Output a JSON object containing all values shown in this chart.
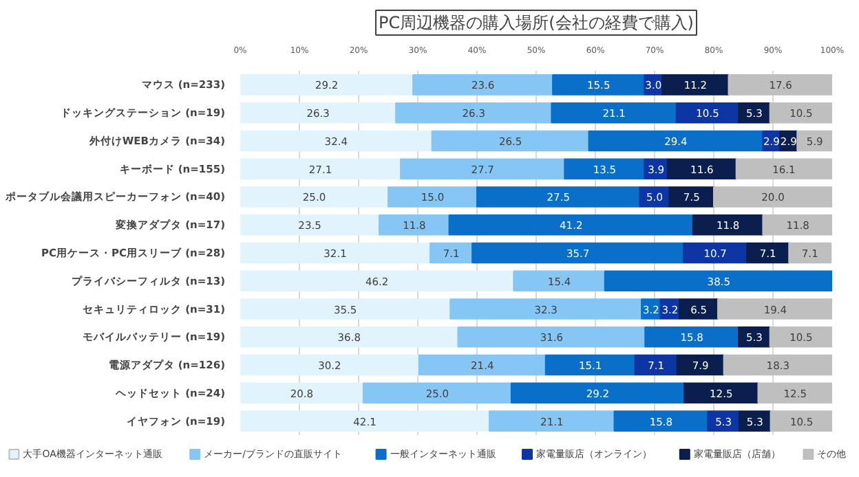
{
  "chart_data": {
    "type": "bar",
    "orientation": "horizontal",
    "stacked": true,
    "data_labels": true,
    "title": "PC周辺機器の購入場所(会社の経費で購入)",
    "categories": [
      "マウス (n=233)",
      "ドッキングステーション (n=19)",
      "外付けWEBカメラ (n=34)",
      "キーボード (n=155)",
      "ポータブル会議用スピーカーフォン (n=40)",
      "変換アダプタ (n=17)",
      "PC用ケース・PC用スリーブ (n=28)",
      "プライバシーフィルタ (n=13)",
      "セキュリティロック (n=31)",
      "モバイルバッテリー (n=19)",
      "電源アダプタ (n=126)",
      "ヘッドセット (n=24)",
      "イヤフォン (n=19)"
    ],
    "series": [
      {
        "name": "大手OA機器インターネット通販",
        "color": "#e1f3fc",
        "values": [
          29.2,
          26.3,
          32.4,
          27.1,
          25,
          23.5,
          32.1,
          46.2,
          35.5,
          36.8,
          30.2,
          20.8,
          42.1
        ],
        "value_labels": [
          "29.2",
          "26.3",
          "32.4",
          "27.1",
          "25.0",
          "23.5",
          "32.1",
          "46.2",
          "35.5",
          "36.8",
          "30.2",
          "20.8",
          "42.1"
        ]
      },
      {
        "name": "メーカー/ブランドの直販サイト",
        "color": "#85c6f5",
        "values": [
          23.6,
          26.3,
          26.5,
          27.7,
          15,
          11.8,
          7.1,
          15.4,
          32.3,
          31.6,
          21.4,
          25,
          21.1
        ],
        "value_labels": [
          "23.6",
          "26.3",
          "26.5",
          "27.7",
          "15.0",
          "11.8",
          "7.1",
          "15.4",
          "32.3",
          "31.6",
          "21.4",
          "25.0",
          "21.1"
        ]
      },
      {
        "name": "一般インターネット通販",
        "color": "#0a6fc8",
        "values": [
          15.5,
          21.1,
          29.4,
          13.5,
          27.5,
          41.2,
          35.7,
          38.5,
          3.2,
          15.8,
          15.1,
          29.2,
          15.8
        ],
        "value_labels": [
          "15.5",
          "21.1",
          "29.4",
          "13.5",
          "27.5",
          "41.2",
          "35.7",
          "38.5",
          "3.2",
          "15.8",
          "15.1",
          "29.2",
          "15.8"
        ]
      },
      {
        "name": "家電量販店（オンライン）",
        "color": "#0d35a3",
        "values": [
          3,
          10.5,
          2.9,
          3.9,
          5,
          null,
          10.7,
          null,
          3.2,
          null,
          7.1,
          null,
          5.3
        ],
        "value_labels": [
          "3.0",
          "10.5",
          "2.9",
          "3.9",
          "5.0",
          null,
          "10.7",
          null,
          "3.2",
          null,
          "7.1",
          null,
          "5.3"
        ]
      },
      {
        "name": "家電量販店（店舗）",
        "color": "#0b1f4f",
        "values": [
          11.2,
          5.3,
          2.9,
          11.6,
          7.5,
          11.8,
          7.1,
          null,
          6.5,
          5.3,
          7.9,
          12.5,
          5.3
        ],
        "value_labels": [
          "11.2",
          "5.3",
          "2.9",
          "11.6",
          "7.5",
          "11.8",
          "7.1",
          null,
          "6.5",
          "5.3",
          "7.9",
          "12.5",
          "5.3"
        ]
      },
      {
        "name": "その他",
        "color": "#bfbfbf",
        "values": [
          17.6,
          10.5,
          5.9,
          16.1,
          20,
          11.8,
          7.1,
          null,
          19.4,
          10.5,
          18.3,
          12.5,
          10.5
        ],
        "value_labels": [
          "17.6",
          "10.5",
          "5.9",
          "16.1",
          "20.0",
          "11.8",
          "7.1",
          null,
          "19.4",
          "10.5",
          "18.3",
          "12.5",
          "10.5"
        ]
      }
    ],
    "xlim": [
      0,
      100
    ],
    "xticks": [
      {
        "value": 0,
        "label": "0%"
      },
      {
        "value": 10,
        "label": "10%"
      },
      {
        "value": 20,
        "label": "20%"
      },
      {
        "value": 30,
        "label": "30%"
      },
      {
        "value": 40,
        "label": "40%"
      },
      {
        "value": 50,
        "label": "50%"
      },
      {
        "value": 60,
        "label": "60%"
      },
      {
        "value": 70,
        "label": "70%"
      },
      {
        "value": 80,
        "label": "80%"
      },
      {
        "value": 90,
        "label": "90%"
      },
      {
        "value": 100,
        "label": "100%"
      }
    ],
    "grid": "x",
    "legend": "bottom"
  }
}
